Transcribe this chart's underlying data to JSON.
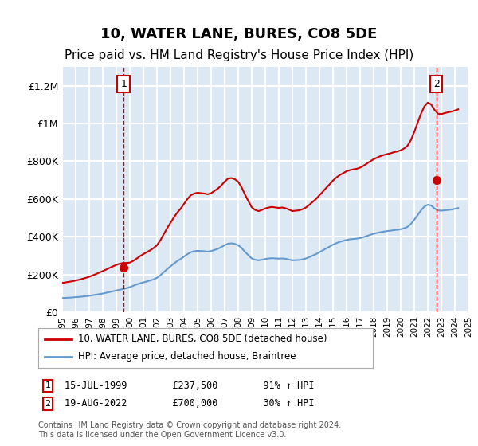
{
  "title": "10, WATER LANE, BURES, CO8 5DE",
  "subtitle": "Price paid vs. HM Land Registry's House Price Index (HPI)",
  "title_fontsize": 13,
  "subtitle_fontsize": 11,
  "bg_color": "#dce9f5",
  "plot_bg_color": "#dce9f5",
  "grid_color": "#ffffff",
  "red_line_color": "#cc0000",
  "blue_line_color": "#6699cc",
  "marker_color": "#cc0000",
  "dashed_line_color": "#cc0000",
  "ylabel_max": 1300000,
  "yticks": [
    0,
    200000,
    400000,
    600000,
    800000,
    1000000,
    1200000
  ],
  "ytick_labels": [
    "£0",
    "£200K",
    "£400K",
    "£600K",
    "£800K",
    "£1M",
    "£1.2M"
  ],
  "x_start_year": 1995,
  "x_end_year": 2025,
  "transaction1_date": 1999.54,
  "transaction1_price": 237500,
  "transaction2_date": 2022.63,
  "transaction2_price": 700000,
  "legend_line1": "10, WATER LANE, BURES, CO8 5DE (detached house)",
  "legend_line2": "HPI: Average price, detached house, Braintree",
  "footnote1": "1    15-JUL-1999        £237,500        91% ↑ HPI",
  "footnote2": "2    19-AUG-2022        £700,000        30% ↑ HPI",
  "copyright": "Contains HM Land Registry data © Crown copyright and database right 2024.\nThis data is licensed under the Open Government Licence v3.0.",
  "hpi_years": [
    1995.0,
    1995.25,
    1995.5,
    1995.75,
    1996.0,
    1996.25,
    1996.5,
    1996.75,
    1997.0,
    1997.25,
    1997.5,
    1997.75,
    1998.0,
    1998.25,
    1998.5,
    1998.75,
    1999.0,
    1999.25,
    1999.5,
    1999.75,
    2000.0,
    2000.25,
    2000.5,
    2000.75,
    2001.0,
    2001.25,
    2001.5,
    2001.75,
    2002.0,
    2002.25,
    2002.5,
    2002.75,
    2003.0,
    2003.25,
    2003.5,
    2003.75,
    2004.0,
    2004.25,
    2004.5,
    2004.75,
    2005.0,
    2005.25,
    2005.5,
    2005.75,
    2006.0,
    2006.25,
    2006.5,
    2006.75,
    2007.0,
    2007.25,
    2007.5,
    2007.75,
    2008.0,
    2008.25,
    2008.5,
    2008.75,
    2009.0,
    2009.25,
    2009.5,
    2009.75,
    2010.0,
    2010.25,
    2010.5,
    2010.75,
    2011.0,
    2011.25,
    2011.5,
    2011.75,
    2012.0,
    2012.25,
    2012.5,
    2012.75,
    2013.0,
    2013.25,
    2013.5,
    2013.75,
    2014.0,
    2014.25,
    2014.5,
    2014.75,
    2015.0,
    2015.25,
    2015.5,
    2015.75,
    2016.0,
    2016.25,
    2016.5,
    2016.75,
    2017.0,
    2017.25,
    2017.5,
    2017.75,
    2018.0,
    2018.25,
    2018.5,
    2018.75,
    2019.0,
    2019.25,
    2019.5,
    2019.75,
    2020.0,
    2020.25,
    2020.5,
    2020.75,
    2021.0,
    2021.25,
    2021.5,
    2021.75,
    2022.0,
    2022.25,
    2022.5,
    2022.75,
    2023.0,
    2023.25,
    2023.5,
    2023.75,
    2024.0,
    2024.25
  ],
  "hpi_values": [
    75000,
    76000,
    77000,
    78000,
    80000,
    81000,
    83000,
    85000,
    87000,
    90000,
    93000,
    96000,
    99000,
    103000,
    107000,
    111000,
    115000,
    119000,
    123000,
    127000,
    133000,
    140000,
    147000,
    153000,
    158000,
    163000,
    168000,
    174000,
    182000,
    196000,
    212000,
    228000,
    243000,
    258000,
    271000,
    282000,
    295000,
    308000,
    318000,
    323000,
    325000,
    324000,
    323000,
    321000,
    324000,
    330000,
    336000,
    345000,
    355000,
    363000,
    365000,
    362000,
    355000,
    340000,
    320000,
    302000,
    285000,
    278000,
    275000,
    278000,
    282000,
    285000,
    286000,
    285000,
    284000,
    285000,
    283000,
    279000,
    275000,
    276000,
    277000,
    280000,
    285000,
    292000,
    300000,
    308000,
    318000,
    328000,
    338000,
    348000,
    358000,
    366000,
    373000,
    378000,
    383000,
    386000,
    388000,
    390000,
    393000,
    398000,
    404000,
    410000,
    416000,
    420000,
    424000,
    427000,
    430000,
    432000,
    435000,
    437000,
    440000,
    445000,
    452000,
    468000,
    490000,
    515000,
    540000,
    560000,
    570000,
    565000,
    550000,
    540000,
    538000,
    540000,
    542000,
    544000,
    548000,
    552000
  ],
  "red_years": [
    1995.0,
    1995.25,
    1995.5,
    1995.75,
    1996.0,
    1996.25,
    1996.5,
    1996.75,
    1997.0,
    1997.25,
    1997.5,
    1997.75,
    1998.0,
    1998.25,
    1998.5,
    1998.75,
    1999.0,
    1999.25,
    1999.5,
    1999.75,
    2000.0,
    2000.25,
    2000.5,
    2000.75,
    2001.0,
    2001.25,
    2001.5,
    2001.75,
    2002.0,
    2002.25,
    2002.5,
    2002.75,
    2003.0,
    2003.25,
    2003.5,
    2003.75,
    2004.0,
    2004.25,
    2004.5,
    2004.75,
    2005.0,
    2005.25,
    2005.5,
    2005.75,
    2006.0,
    2006.25,
    2006.5,
    2006.75,
    2007.0,
    2007.25,
    2007.5,
    2007.75,
    2008.0,
    2008.25,
    2008.5,
    2008.75,
    2009.0,
    2009.25,
    2009.5,
    2009.75,
    2010.0,
    2010.25,
    2010.5,
    2010.75,
    2011.0,
    2011.25,
    2011.5,
    2011.75,
    2012.0,
    2012.25,
    2012.5,
    2012.75,
    2013.0,
    2013.25,
    2013.5,
    2013.75,
    2014.0,
    2014.25,
    2014.5,
    2014.75,
    2015.0,
    2015.25,
    2015.5,
    2015.75,
    2016.0,
    2016.25,
    2016.5,
    2016.75,
    2017.0,
    2017.25,
    2017.5,
    2017.75,
    2018.0,
    2018.25,
    2018.5,
    2018.75,
    2019.0,
    2019.25,
    2019.5,
    2019.75,
    2020.0,
    2020.25,
    2020.5,
    2020.75,
    2021.0,
    2021.25,
    2021.5,
    2021.75,
    2022.0,
    2022.25,
    2022.5,
    2022.75,
    2023.0,
    2023.25,
    2023.5,
    2023.75,
    2024.0,
    2024.25
  ],
  "red_values": [
    155000,
    158000,
    161000,
    164000,
    168000,
    172000,
    177000,
    182000,
    188000,
    195000,
    202000,
    210000,
    218000,
    226000,
    235000,
    243000,
    251000,
    257000,
    261000,
    261000,
    263000,
    272000,
    284000,
    297000,
    308000,
    318000,
    328000,
    340000,
    355000,
    381000,
    413000,
    445000,
    474000,
    502000,
    528000,
    549000,
    574000,
    600000,
    620000,
    629000,
    633000,
    631000,
    629000,
    625000,
    631000,
    643000,
    655000,
    672000,
    692000,
    708000,
    711000,
    705000,
    691000,
    662000,
    623000,
    589000,
    556000,
    542000,
    536000,
    542000,
    550000,
    555000,
    558000,
    555000,
    553000,
    555000,
    551000,
    544000,
    536000,
    538000,
    540000,
    546000,
    555000,
    569000,
    585000,
    600000,
    620000,
    639000,
    659000,
    678000,
    698000,
    714000,
    727000,
    737000,
    747000,
    753000,
    757000,
    760000,
    766000,
    776000,
    788000,
    800000,
    811000,
    819000,
    827000,
    833000,
    838000,
    842000,
    848000,
    852000,
    858000,
    868000,
    882000,
    912000,
    955000,
    1004000,
    1052000,
    1091000,
    1111000,
    1101000,
    1072000,
    1052000,
    1050000,
    1055000,
    1060000,
    1063000,
    1069000,
    1075000
  ]
}
